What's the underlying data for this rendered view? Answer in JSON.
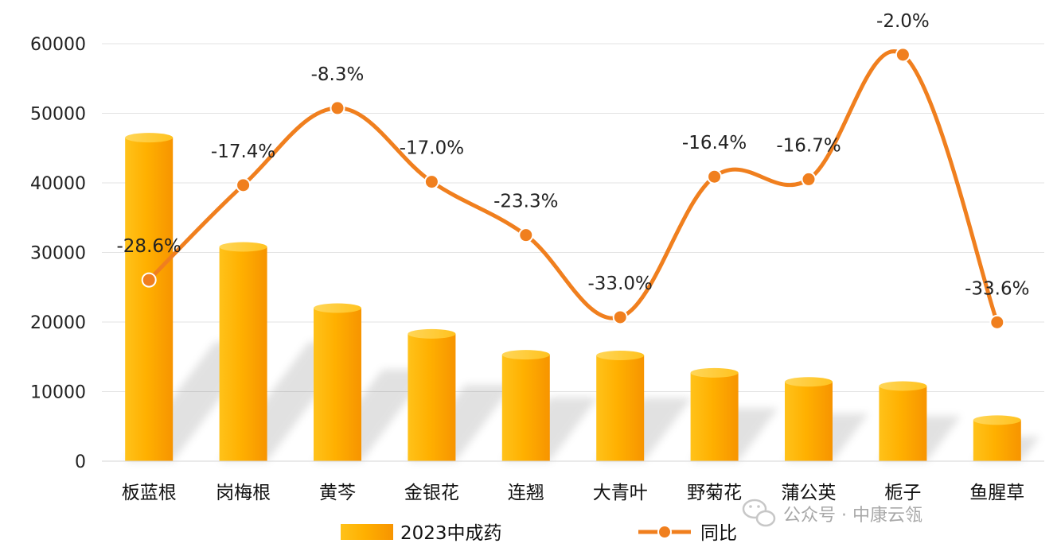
{
  "chart_data": {
    "type": "bar",
    "categories": [
      "板蓝根",
      "岗梅根",
      "黄芩",
      "金银花",
      "连翘",
      "大青叶",
      "野菊花",
      "蒲公英",
      "栀子",
      "鱼腥草"
    ],
    "series": [
      {
        "name": "2023中成药",
        "kind": "bar",
        "values": [
          46500,
          30800,
          22000,
          18300,
          15300,
          15200,
          12700,
          11400,
          10800,
          5900
        ],
        "color": "#FFA500"
      },
      {
        "name": "同比",
        "kind": "line",
        "values": [
          -28.6,
          -17.4,
          -8.3,
          -17.0,
          -23.3,
          -33.0,
          -16.4,
          -16.7,
          -2.0,
          -33.6
        ],
        "labels": [
          "-28.6%",
          "-17.4%",
          "-8.3%",
          "-17.0%",
          "-23.3%",
          "-33.0%",
          "-16.4%",
          "-16.7%",
          "-2.0%",
          "-33.6%"
        ],
        "color": "#F07F1E",
        "secondary_axis": true
      }
    ],
    "y_ticks": [
      "0",
      "10000",
      "20000",
      "30000",
      "40000",
      "50000",
      "60000"
    ],
    "ylim": [
      0,
      60000
    ],
    "y2lim": [
      -50,
      -0.7
    ],
    "grid": true,
    "legend_position": "bottom"
  },
  "watermark": "公众号 · 中康云瓴"
}
